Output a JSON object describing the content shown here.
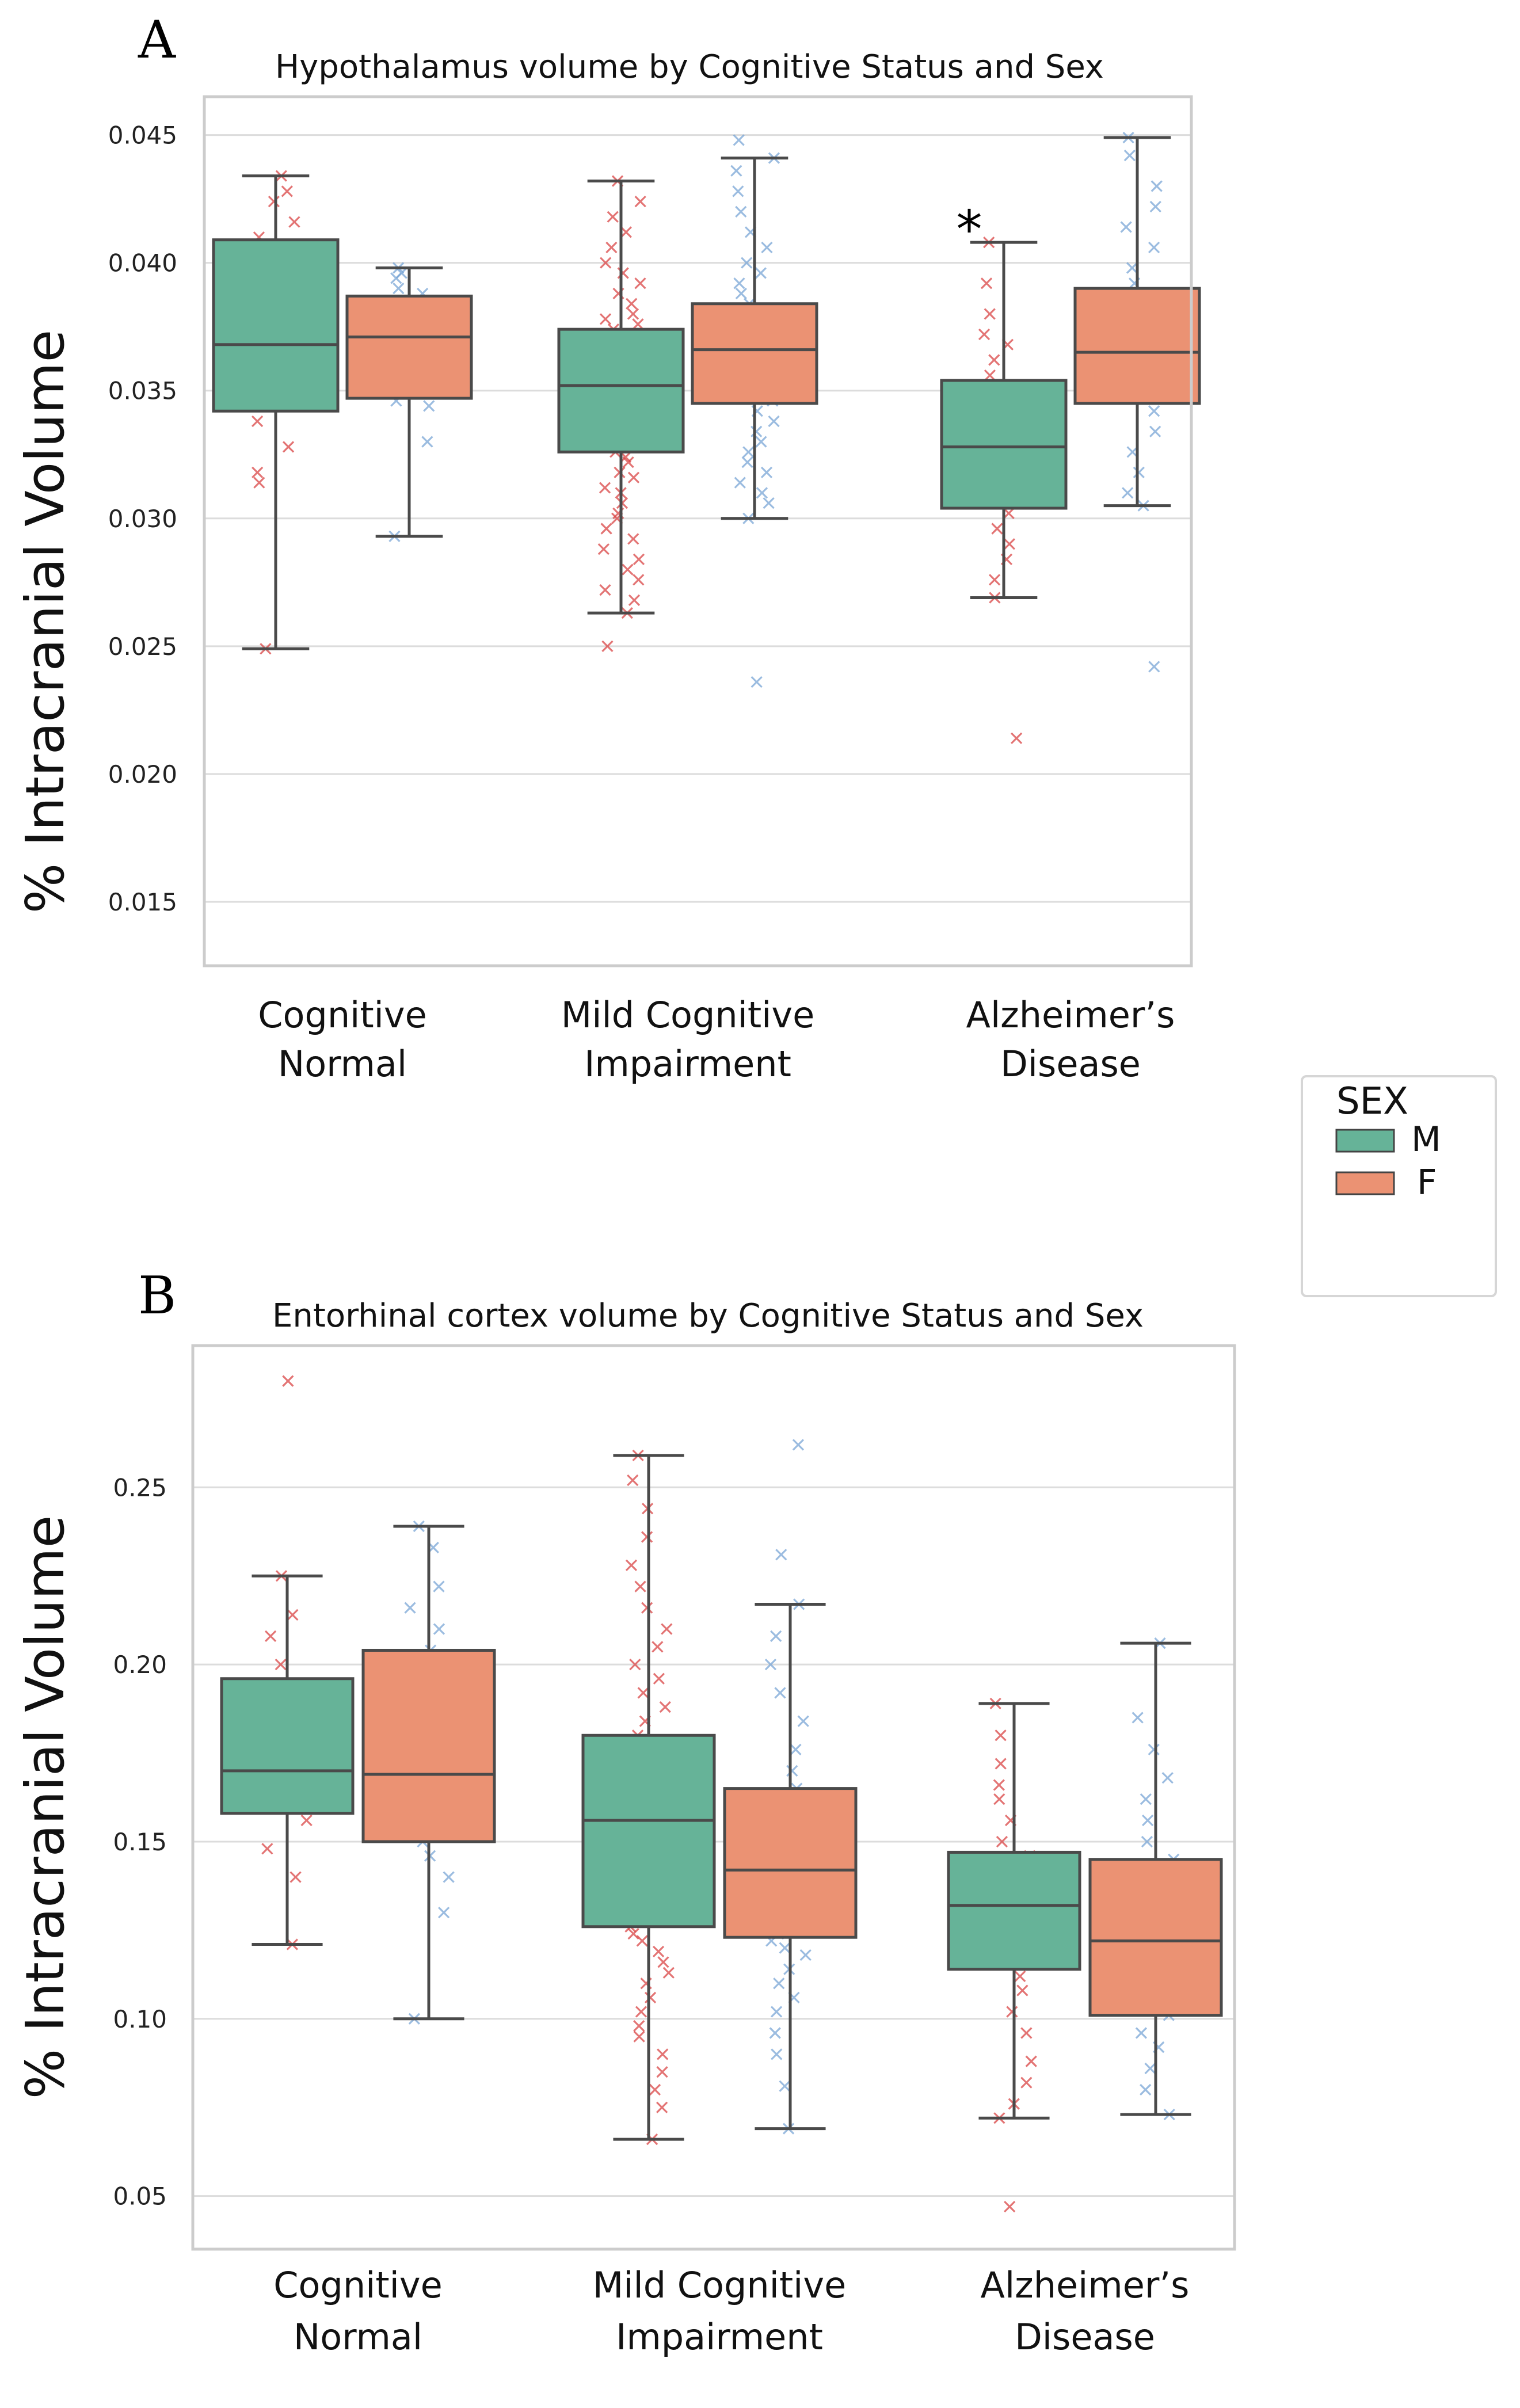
{
  "legend": {
    "title": "SEX",
    "entries": [
      {
        "label": "M",
        "color": "#66b398"
      },
      {
        "label": "F",
        "color": "#eb9273"
      }
    ]
  },
  "colors": {
    "male_box": "#66b398",
    "female_box": "#eb9273",
    "male_points": "#d94545",
    "female_points": "#7aa6d6",
    "grid": "#dcdcdc",
    "frame": "#cccccc",
    "line": "#4a4a4a"
  },
  "chart_data": [
    {
      "panel_letter": "A",
      "type": "box",
      "title": "Hypothalamus volume by Cognitive Status and Sex",
      "ylabel": "% Intracranial Volume",
      "xlabel": "",
      "ylim": [
        0.0125,
        0.0465
      ],
      "yticks": [
        0.015,
        0.02,
        0.025,
        0.03,
        0.035,
        0.04,
        0.045
      ],
      "ytick_labels": [
        "0.015",
        "0.020",
        "0.025",
        "0.030",
        "0.035",
        "0.040",
        "0.045"
      ],
      "grid": true,
      "categories": [
        {
          "line1": "Cognitive",
          "line2": "Normal"
        },
        {
          "line1": "Mild Cognitive",
          "line2": "Impairment"
        },
        {
          "line1": "Alzheimer’s",
          "line2": "Disease"
        }
      ],
      "annotations": [
        {
          "text": "*",
          "category": 2,
          "y": 0.0415
        }
      ],
      "series": [
        {
          "name": "M",
          "boxes": [
            {
              "whislo": 0.0249,
              "q1": 0.0342,
              "median": 0.0368,
              "q3": 0.0409,
              "whishi": 0.0434
            },
            {
              "whislo": 0.0263,
              "q1": 0.0326,
              "median": 0.0352,
              "q3": 0.0374,
              "whishi": 0.0432
            },
            {
              "whislo": 0.0269,
              "q1": 0.0304,
              "median": 0.0328,
              "q3": 0.0354,
              "whishi": 0.0408
            }
          ]
        },
        {
          "name": "F",
          "boxes": [
            {
              "whislo": 0.0293,
              "q1": 0.0347,
              "median": 0.0371,
              "q3": 0.0387,
              "whishi": 0.0398
            },
            {
              "whislo": 0.03,
              "q1": 0.0345,
              "median": 0.0366,
              "q3": 0.0384,
              "whishi": 0.0441
            },
            {
              "whislo": 0.0305,
              "q1": 0.0345,
              "median": 0.0365,
              "q3": 0.039,
              "whishi": 0.0449
            }
          ]
        }
      ],
      "points": [
        {
          "category": 0,
          "sex": "M",
          "values": [
            0.0249,
            0.0314,
            0.0318,
            0.0328,
            0.0338,
            0.0344,
            0.0352,
            0.0356,
            0.0362,
            0.0368,
            0.0374,
            0.0376,
            0.0386,
            0.0398,
            0.041,
            0.0416,
            0.0424,
            0.0428,
            0.0434
          ]
        },
        {
          "category": 0,
          "sex": "F",
          "values": [
            0.0293,
            0.033,
            0.0344,
            0.0346,
            0.0352,
            0.0362,
            0.0366,
            0.037,
            0.0372,
            0.0376,
            0.038,
            0.0384,
            0.0388,
            0.039,
            0.0394,
            0.0396,
            0.0398
          ]
        },
        {
          "category": 1,
          "sex": "M",
          "values": [
            0.025,
            0.0263,
            0.0268,
            0.0272,
            0.0276,
            0.028,
            0.0284,
            0.0288,
            0.0292,
            0.0296,
            0.03,
            0.0302,
            0.0306,
            0.031,
            0.0312,
            0.0316,
            0.0318,
            0.0322,
            0.0324,
            0.0326,
            0.0328,
            0.033,
            0.0332,
            0.0334,
            0.0336,
            0.0338,
            0.034,
            0.0342,
            0.0344,
            0.0346,
            0.0348,
            0.035,
            0.035,
            0.0352,
            0.0352,
            0.0354,
            0.0354,
            0.0356,
            0.0358,
            0.036,
            0.0362,
            0.0364,
            0.0366,
            0.0368,
            0.037,
            0.0372,
            0.0374,
            0.0376,
            0.0378,
            0.038,
            0.0384,
            0.0388,
            0.0392,
            0.0396,
            0.04,
            0.0406,
            0.0412,
            0.0418,
            0.0424,
            0.0432
          ]
        },
        {
          "category": 1,
          "sex": "F",
          "values": [
            0.0236,
            0.03,
            0.0306,
            0.031,
            0.0314,
            0.0318,
            0.0322,
            0.0326,
            0.033,
            0.0334,
            0.0338,
            0.0342,
            0.0346,
            0.035,
            0.0354,
            0.0356,
            0.0358,
            0.036,
            0.0362,
            0.0364,
            0.0366,
            0.0368,
            0.037,
            0.0372,
            0.0374,
            0.0376,
            0.0378,
            0.038,
            0.0382,
            0.0384,
            0.0388,
            0.0392,
            0.0396,
            0.04,
            0.0406,
            0.0412,
            0.042,
            0.0428,
            0.0436,
            0.0441,
            0.0448
          ]
        },
        {
          "category": 2,
          "sex": "M",
          "values": [
            0.0214,
            0.0269,
            0.0276,
            0.0284,
            0.029,
            0.0296,
            0.0302,
            0.0306,
            0.031,
            0.0314,
            0.0318,
            0.0322,
            0.0326,
            0.0328,
            0.0332,
            0.0336,
            0.034,
            0.0344,
            0.035,
            0.0356,
            0.0362,
            0.0368,
            0.0372,
            0.038,
            0.0392,
            0.0408
          ]
        },
        {
          "category": 2,
          "sex": "F",
          "values": [
            0.0242,
            0.0305,
            0.031,
            0.0318,
            0.0326,
            0.0334,
            0.0342,
            0.0348,
            0.0352,
            0.0356,
            0.036,
            0.0364,
            0.0366,
            0.0368,
            0.0372,
            0.0376,
            0.038,
            0.0386,
            0.0392,
            0.0398,
            0.0406,
            0.0414,
            0.0422,
            0.043,
            0.0442,
            0.0449
          ]
        }
      ]
    },
    {
      "panel_letter": "B",
      "type": "box",
      "title": "Entorhinal cortex volume by Cognitive Status and Sex",
      "ylabel": "% Intracranial Volume",
      "xlabel": "",
      "ylim": [
        0.035,
        0.29
      ],
      "yticks": [
        0.05,
        0.1,
        0.15,
        0.2,
        0.25
      ],
      "ytick_labels": [
        "0.05",
        "0.10",
        "0.15",
        "0.20",
        "0.25"
      ],
      "grid": true,
      "categories": [
        {
          "line1": "Cognitive",
          "line2": "Normal"
        },
        {
          "line1": "Mild Cognitive",
          "line2": "Impairment"
        },
        {
          "line1": "Alzheimer’s",
          "line2": "Disease"
        }
      ],
      "annotations": [],
      "series": [
        {
          "name": "M",
          "boxes": [
            {
              "whislo": 0.121,
              "q1": 0.158,
              "median": 0.17,
              "q3": 0.196,
              "whishi": 0.225
            },
            {
              "whislo": 0.066,
              "q1": 0.126,
              "median": 0.156,
              "q3": 0.18,
              "whishi": 0.259
            },
            {
              "whislo": 0.072,
              "q1": 0.114,
              "median": 0.132,
              "q3": 0.147,
              "whishi": 0.189
            }
          ]
        },
        {
          "name": "F",
          "boxes": [
            {
              "whislo": 0.1,
              "q1": 0.15,
              "median": 0.169,
              "q3": 0.204,
              "whishi": 0.239
            },
            {
              "whislo": 0.069,
              "q1": 0.123,
              "median": 0.142,
              "q3": 0.165,
              "whishi": 0.217
            },
            {
              "whislo": 0.073,
              "q1": 0.101,
              "median": 0.122,
              "q3": 0.145,
              "whishi": 0.206
            }
          ]
        }
      ],
      "points": [
        {
          "category": 0,
          "sex": "M",
          "values": [
            0.121,
            0.14,
            0.148,
            0.156,
            0.16,
            0.164,
            0.166,
            0.168,
            0.17,
            0.172,
            0.174,
            0.178,
            0.182,
            0.188,
            0.194,
            0.2,
            0.208,
            0.214,
            0.225,
            0.28
          ]
        },
        {
          "category": 0,
          "sex": "F",
          "values": [
            0.1,
            0.13,
            0.14,
            0.146,
            0.15,
            0.156,
            0.16,
            0.162,
            0.168,
            0.172,
            0.178,
            0.184,
            0.192,
            0.198,
            0.204,
            0.21,
            0.216,
            0.222,
            0.233,
            0.239
          ]
        },
        {
          "category": 1,
          "sex": "M",
          "values": [
            0.066,
            0.075,
            0.08,
            0.085,
            0.09,
            0.095,
            0.098,
            0.102,
            0.106,
            0.11,
            0.113,
            0.116,
            0.119,
            0.122,
            0.124,
            0.126,
            0.128,
            0.13,
            0.132,
            0.134,
            0.136,
            0.138,
            0.14,
            0.142,
            0.144,
            0.146,
            0.148,
            0.15,
            0.152,
            0.154,
            0.156,
            0.158,
            0.16,
            0.162,
            0.164,
            0.166,
            0.168,
            0.17,
            0.172,
            0.174,
            0.176,
            0.178,
            0.18,
            0.184,
            0.188,
            0.192,
            0.196,
            0.2,
            0.205,
            0.21,
            0.216,
            0.222,
            0.228,
            0.236,
            0.244,
            0.252,
            0.259
          ]
        },
        {
          "category": 1,
          "sex": "F",
          "values": [
            0.069,
            0.081,
            0.09,
            0.096,
            0.102,
            0.106,
            0.11,
            0.114,
            0.118,
            0.12,
            0.122,
            0.124,
            0.126,
            0.128,
            0.13,
            0.132,
            0.134,
            0.136,
            0.138,
            0.14,
            0.142,
            0.144,
            0.146,
            0.148,
            0.15,
            0.152,
            0.154,
            0.158,
            0.162,
            0.165,
            0.17,
            0.176,
            0.184,
            0.192,
            0.2,
            0.208,
            0.217,
            0.231,
            0.262
          ]
        },
        {
          "category": 2,
          "sex": "M",
          "values": [
            0.047,
            0.072,
            0.076,
            0.082,
            0.088,
            0.096,
            0.102,
            0.108,
            0.112,
            0.116,
            0.12,
            0.124,
            0.128,
            0.13,
            0.132,
            0.134,
            0.138,
            0.142,
            0.146,
            0.15,
            0.156,
            0.162,
            0.166,
            0.172,
            0.18,
            0.189
          ]
        },
        {
          "category": 2,
          "sex": "F",
          "values": [
            0.073,
            0.08,
            0.086,
            0.092,
            0.096,
            0.101,
            0.106,
            0.11,
            0.114,
            0.118,
            0.122,
            0.126,
            0.13,
            0.134,
            0.138,
            0.142,
            0.145,
            0.15,
            0.156,
            0.162,
            0.168,
            0.176,
            0.185,
            0.206
          ]
        }
      ]
    }
  ]
}
